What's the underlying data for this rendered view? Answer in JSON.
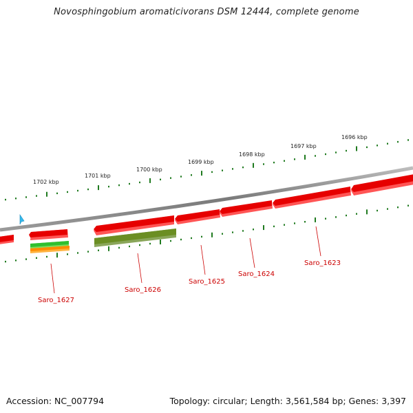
{
  "title": "Novosphingobium aromaticivorans DSM 12444, complete genome",
  "footer": {
    "accession": "Accession: NC_007794",
    "topology": "Topology: circular; Length: 3,561,584 bp; Genes: 3,397"
  },
  "colors": {
    "backbone": "#8c8c8c",
    "gene": "#e60000",
    "gene_highlight": "#6b8e23",
    "rna_green": "#33cc33",
    "rna_orange": "#ff9900",
    "tick": "#1f7a1f",
    "label": "#cc0000",
    "cursor": "#33bbee"
  },
  "kbp_labels": [
    {
      "text": "1702 kbp",
      "pos": 1702
    },
    {
      "text": "1701 kbp",
      "pos": 1701
    },
    {
      "text": "1700 kbp",
      "pos": 1700
    },
    {
      "text": "1699 kbp",
      "pos": 1699
    },
    {
      "text": "1698 kbp",
      "pos": 1698
    },
    {
      "text": "1697 kbp",
      "pos": 1697
    },
    {
      "text": "1696 kbp",
      "pos": 1696
    }
  ],
  "gene_labels": [
    {
      "text": "Saro_1627"
    },
    {
      "text": "Saro_1626"
    },
    {
      "text": "Saro_1625"
    },
    {
      "text": "Saro_1624"
    },
    {
      "text": "Saro_1623"
    }
  ],
  "cursor_icon": "pointer-arrow-icon"
}
